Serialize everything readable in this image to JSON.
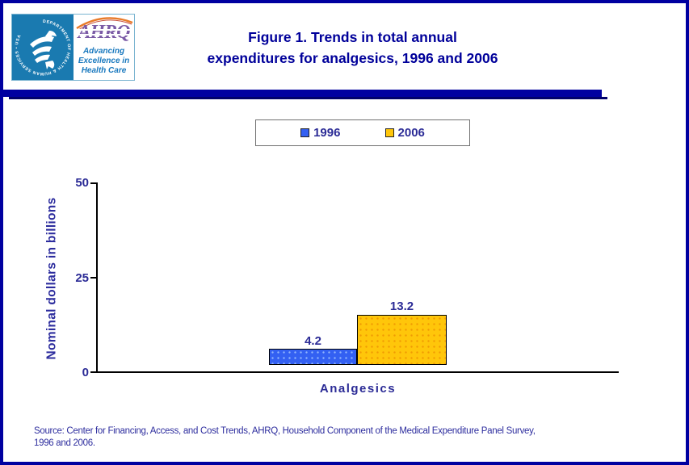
{
  "header": {
    "title_line1": "Figure 1. Trends in total annual",
    "title_line2": "expenditures for analgesics, 1996 and 2006",
    "title_color": "#00009a"
  },
  "logo": {
    "seal_text": "DEPARTMENT OF HEALTH & HUMAN SERVICES • USA",
    "acronym": "AHRQ",
    "tagline_line1": "Advancing",
    "tagline_line2": "Excellence in",
    "tagline_line3": "Health Care",
    "seal_bg": "#1a7ab0",
    "acronym_color": "#7b5ba6",
    "swoosh_color": "#e87b2a",
    "tagline_color": "#1878be"
  },
  "legend": {
    "items": [
      {
        "label": "1996",
        "color": "#3360f2"
      },
      {
        "label": "2006",
        "color": "#ffc60a"
      }
    ]
  },
  "chart_data": {
    "type": "bar",
    "title": "Figure 1. Trends in total annual expenditures for analgesics, 1996 and 2006",
    "categories": [
      "Analgesics"
    ],
    "series": [
      {
        "name": "1996",
        "values": [
          4.2
        ],
        "color": "#3360f2"
      },
      {
        "name": "2006",
        "values": [
          13.2
        ],
        "color": "#ffc60a"
      }
    ],
    "value_labels": [
      "4.2",
      "13.2"
    ],
    "xlabel": "",
    "ylabel": "Nominal dollars in billions",
    "ylim": [
      0,
      50
    ],
    "yticks": [
      0,
      25,
      50
    ],
    "ytick_labels_top_down": [
      "50",
      "25",
      "0"
    ],
    "grid": false,
    "legend_position": "top-center",
    "bar_value_color": "#2b2b96",
    "axis_color": "#000000"
  },
  "source": {
    "line1": "Source: Center for Financing, Access, and Cost Trends, AHRQ, Household Component of the Medical Expenditure Panel Survey,",
    "line2": "1996 and 2006."
  }
}
